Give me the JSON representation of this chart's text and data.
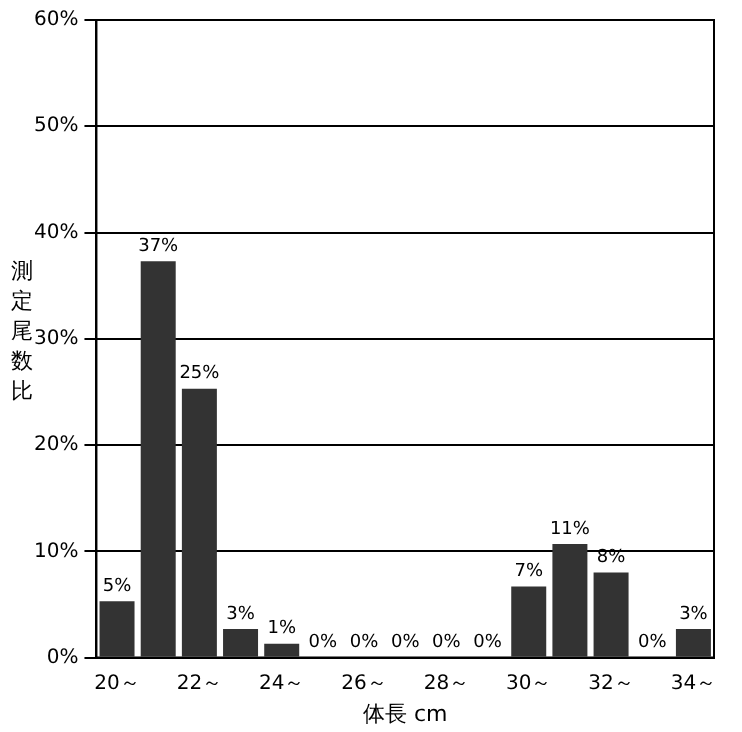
{
  "chart_data": {
    "type": "bar",
    "xlabel": "体長 cm",
    "ylabel": "測定尾数比",
    "categories": [
      "20～",
      null,
      "22～",
      null,
      "24～",
      null,
      "26～",
      null,
      "28～",
      null,
      "30～",
      null,
      "32～",
      null,
      "34～"
    ],
    "values": [
      5.3,
      37.3,
      25.3,
      2.7,
      1.3,
      0,
      0,
      0,
      0,
      0,
      6.7,
      10.7,
      8,
      0,
      2.7
    ],
    "value_labels": [
      "5%",
      "37%",
      "25%",
      "3%",
      "1%",
      "0%",
      "0%",
      "0%",
      "0%",
      "0%",
      "7%",
      "11%",
      "8%",
      "0%",
      "3%"
    ],
    "color": "#333333",
    "grid": "y",
    "legend": false,
    "ylim": [
      0,
      60
    ],
    "yticks": [
      {
        "value": 0,
        "label": "0%"
      },
      {
        "value": 10,
        "label": "10%"
      },
      {
        "value": 20,
        "label": "20%"
      },
      {
        "value": 30,
        "label": "30%"
      },
      {
        "value": 40,
        "label": "40%"
      },
      {
        "value": 50,
        "label": "50%"
      },
      {
        "value": 60,
        "label": "60%"
      }
    ]
  }
}
